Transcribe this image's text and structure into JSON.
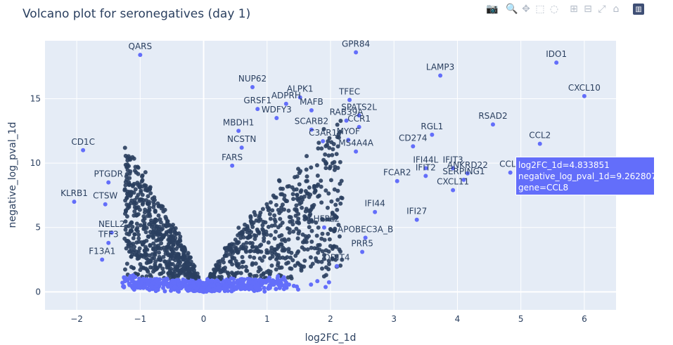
{
  "chart_data": {
    "type": "scatter",
    "title": "Volcano plot for seronegatives (day 1)",
    "xlabel": "log2FC_1d",
    "ylabel": "negative_log_pval_1d",
    "xlim": [
      -2.5,
      6.5
    ],
    "ylim": [
      -1.4,
      19.5
    ],
    "xticks": [
      -2,
      -1,
      0,
      1,
      2,
      3,
      4,
      5,
      6
    ],
    "yticks": [
      0,
      5,
      10,
      15
    ],
    "grid": true,
    "marker_color": "#636efa",
    "label_color": "#2a3f5f",
    "labeled_points": [
      {
        "gene": "QARS",
        "x": -1.0,
        "y": 18.4
      },
      {
        "gene": "GPR84",
        "x": 2.4,
        "y": 18.6
      },
      {
        "gene": "IDO1",
        "x": 5.56,
        "y": 17.8
      },
      {
        "gene": "LAMP3",
        "x": 3.73,
        "y": 16.8
      },
      {
        "gene": "CXCL10",
        "x": 6.0,
        "y": 15.2
      },
      {
        "gene": "NUP62",
        "x": 0.77,
        "y": 15.9
      },
      {
        "gene": "ALPK1",
        "x": 1.52,
        "y": 15.1
      },
      {
        "gene": "TFEC",
        "x": 2.3,
        "y": 14.9
      },
      {
        "gene": "ADPRH",
        "x": 1.3,
        "y": 14.6
      },
      {
        "gene": "MAFB",
        "x": 1.7,
        "y": 14.1
      },
      {
        "gene": "SPATS2L",
        "x": 2.45,
        "y": 13.7
      },
      {
        "gene": "RAB39A",
        "x": 2.25,
        "y": 13.3
      },
      {
        "gene": "CCR1",
        "x": 2.45,
        "y": 12.8
      },
      {
        "gene": "RSAD2",
        "x": 4.56,
        "y": 13.0
      },
      {
        "gene": "RGL1",
        "x": 3.6,
        "y": 12.2
      },
      {
        "gene": "CCL2",
        "x": 5.3,
        "y": 11.5
      },
      {
        "gene": "CD274",
        "x": 3.3,
        "y": 11.3
      },
      {
        "gene": "MYOF",
        "x": 2.28,
        "y": 11.8
      },
      {
        "gene": "MS4A4A",
        "x": 2.4,
        "y": 10.9
      },
      {
        "gene": "C3AR1",
        "x": 1.88,
        "y": 11.7
      },
      {
        "gene": "SCARB2",
        "x": 1.7,
        "y": 12.6
      },
      {
        "gene": "IFIT3",
        "x": 3.93,
        "y": 9.6
      },
      {
        "gene": "ANKRD22",
        "x": 4.16,
        "y": 9.2
      },
      {
        "gene": "SERPING1",
        "x": 4.1,
        "y": 8.7
      },
      {
        "gene": "CXCL11",
        "x": 3.93,
        "y": 7.9
      },
      {
        "gene": "CCL8",
        "x": 4.833851,
        "y": 9.262807
      },
      {
        "gene": "IFIT2",
        "x": 3.5,
        "y": 9.0
      },
      {
        "gene": "IFI44L",
        "x": 3.5,
        "y": 9.6
      },
      {
        "gene": "FCAR2",
        "x": 3.05,
        "y": 8.6
      },
      {
        "gene": "IFI44",
        "x": 2.7,
        "y": 6.2
      },
      {
        "gene": "IFI27",
        "x": 3.36,
        "y": 5.6
      },
      {
        "gene": "APOBEC3A_B",
        "x": 2.55,
        "y": 4.2
      },
      {
        "gene": "CD1C",
        "x": -1.9,
        "y": 11.0
      },
      {
        "gene": "KLRB1",
        "x": -2.04,
        "y": 7.0
      },
      {
        "gene": "CTSW",
        "x": -1.55,
        "y": 6.8
      },
      {
        "gene": "PTGDR",
        "x": -1.5,
        "y": 8.5
      },
      {
        "gene": "NELL2",
        "x": -1.45,
        "y": 4.6
      },
      {
        "gene": "F13A1",
        "x": -1.6,
        "y": 2.5
      },
      {
        "gene": "TFF3",
        "x": -1.5,
        "y": 3.8
      },
      {
        "gene": "GRSF1",
        "x": 0.85,
        "y": 14.2
      },
      {
        "gene": "WDFY3",
        "x": 1.15,
        "y": 13.5
      },
      {
        "gene": "NCSTN",
        "x": 0.6,
        "y": 11.2
      },
      {
        "gene": "MBDH1",
        "x": 0.55,
        "y": 12.5
      },
      {
        "gene": "FARS",
        "x": 0.45,
        "y": 9.8
      },
      {
        "gene": "LHFPL2",
        "x": 1.9,
        "y": 5.0
      },
      {
        "gene": "PRR5",
        "x": 2.5,
        "y": 3.1
      },
      {
        "gene": "DDIT4",
        "x": 2.1,
        "y": 2.0
      }
    ],
    "hover": {
      "line1": "log2FC_1d=4.833851",
      "line2": "negative_log_pval_1d=9.262807",
      "line3": "gene=CCL8"
    }
  },
  "modebar": {
    "buttons": [
      {
        "name": "camera-icon",
        "glyph": "📷"
      },
      {
        "name": "zoom-icon",
        "glyph": "🔍"
      },
      {
        "name": "pan-icon",
        "glyph": "✥"
      },
      {
        "name": "box-select-icon",
        "glyph": "⬚"
      },
      {
        "name": "lasso-select-icon",
        "glyph": "◌"
      },
      {
        "name": "zoom-in-icon",
        "glyph": "⊞"
      },
      {
        "name": "zoom-out-icon",
        "glyph": "⊟"
      },
      {
        "name": "autoscale-icon",
        "glyph": "⤢"
      },
      {
        "name": "home-icon",
        "glyph": "⌂"
      },
      {
        "name": "plotly-logo-icon",
        "glyph": "▥"
      }
    ]
  }
}
